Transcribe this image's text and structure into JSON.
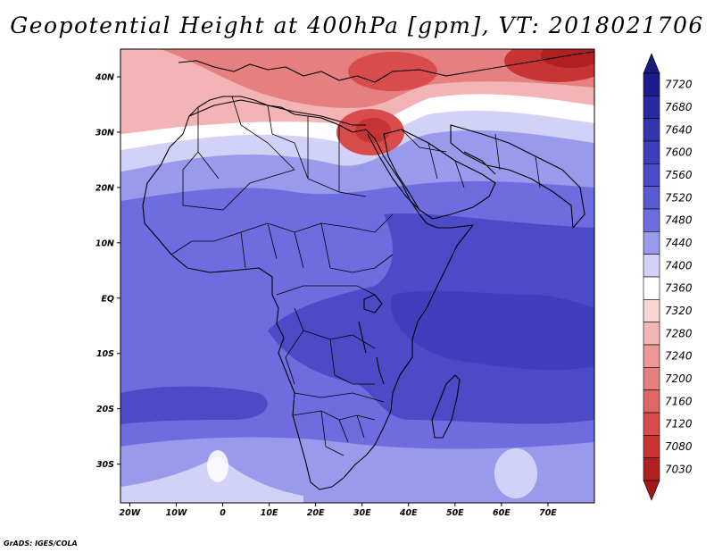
{
  "title": "Geopotential Height at 400hPa [gpm], VT: 2018021706",
  "credit": "GrADS: IGES/COLA",
  "map": {
    "lon_range": [
      -22,
      80
    ],
    "lat_range": [
      -37,
      45
    ],
    "lon_ticks": [
      {
        "value": -20,
        "label": "20W"
      },
      {
        "value": -10,
        "label": "10W"
      },
      {
        "value": 0,
        "label": "0"
      },
      {
        "value": 10,
        "label": "10E"
      },
      {
        "value": 20,
        "label": "20E"
      },
      {
        "value": 30,
        "label": "30E"
      },
      {
        "value": 40,
        "label": "40E"
      },
      {
        "value": 50,
        "label": "50E"
      },
      {
        "value": 60,
        "label": "60E"
      },
      {
        "value": 70,
        "label": "70E"
      }
    ],
    "lat_ticks": [
      {
        "value": 40,
        "label": "40N"
      },
      {
        "value": 30,
        "label": "30N"
      },
      {
        "value": 20,
        "label": "20N"
      },
      {
        "value": 10,
        "label": "10N"
      },
      {
        "value": 0,
        "label": "EQ"
      },
      {
        "value": -10,
        "label": "10S"
      },
      {
        "value": -20,
        "label": "20S"
      },
      {
        "value": -30,
        "label": "30S"
      }
    ]
  },
  "colorbar": {
    "levels": [
      {
        "label": "7720",
        "color": "#1c1c8e"
      },
      {
        "label": "7680",
        "color": "#2a2aa0"
      },
      {
        "label": "7640",
        "color": "#3434b0"
      },
      {
        "label": "7600",
        "color": "#3f3fbe"
      },
      {
        "label": "7560",
        "color": "#4b4bc8"
      },
      {
        "label": "7520",
        "color": "#5a5ad2"
      },
      {
        "label": "7480",
        "color": "#6d6de0"
      },
      {
        "label": "7440",
        "color": "#9a9aec"
      },
      {
        "label": "7400",
        "color": "#d2d2f8"
      },
      {
        "label": "7360",
        "color": "#ffffff"
      },
      {
        "label": "7320",
        "color": "#f8d6d6"
      },
      {
        "label": "7280",
        "color": "#f2b4b4"
      },
      {
        "label": "7240",
        "color": "#ec9898"
      },
      {
        "label": "7200",
        "color": "#e68080"
      },
      {
        "label": "7160",
        "color": "#e06666"
      },
      {
        "label": "7120",
        "color": "#d84c4c"
      },
      {
        "label": "7080",
        "color": "#c83434"
      },
      {
        "label": "7030",
        "color": "#b02020"
      }
    ],
    "top_arrow_color": "#1a1a7a",
    "bottom_arrow_color": "#a01818"
  },
  "field_colors": {
    "deep_red": "#b02020",
    "red": "#e06666",
    "pink": "#f2b4b4",
    "white": "#ffffff",
    "light_blue": "#d2d2f8",
    "mid_blue": "#9a9aec",
    "blue": "#6d6de0",
    "deep_blue": "#4b4bc8",
    "darker_blue": "#3f3fbe"
  }
}
